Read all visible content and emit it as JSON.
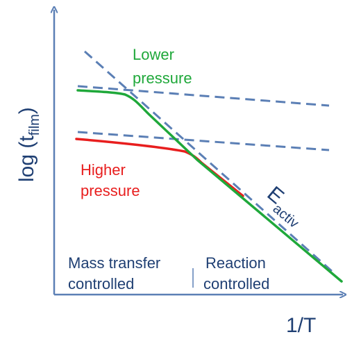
{
  "chart_data": {
    "type": "line",
    "ylabel": "log (t",
    "ylabel_sub": "film",
    "ylabel_close": ")",
    "xlabel": "1/T",
    "region_left": {
      "line1": "Mass transfer",
      "line2": "controlled"
    },
    "region_right": {
      "line1": "Reaction",
      "line2": "controlled"
    },
    "lower_pressure_label": {
      "line1": "Lower",
      "line2": "pressure"
    },
    "higher_pressure_label": {
      "line1": "Higher",
      "line2": "pressure"
    },
    "activation_label": "E",
    "activation_sub": "activ",
    "colors": {
      "axis": "#5b7fb5",
      "dashed": "#5b7fb5",
      "lower_pressure": "#1fa83a",
      "higher_pressure": "#e81e1e",
      "text": "#1f3f73",
      "label_green": "#1fa83a",
      "label_red": "#e81e1e"
    }
  }
}
